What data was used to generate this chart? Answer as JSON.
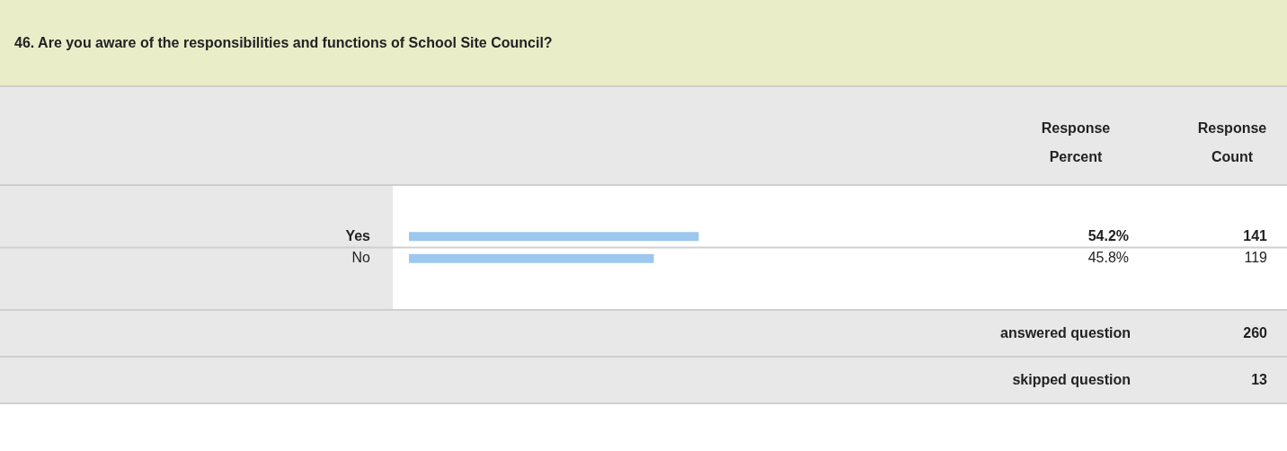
{
  "chart_data": {
    "type": "bar",
    "orientation": "horizontal",
    "title": "46. Are you aware of the responsibilities and functions of School Site Council?",
    "categories": [
      "Yes",
      "No"
    ],
    "series": [
      {
        "color": "#9cc8ef",
        "values": [
          54.2,
          45.8
        ],
        "value_labels": [
          "54.2%",
          "45.8%"
        ]
      }
    ],
    "grid": false,
    "legend": false,
    "annotations": [
      "Response Percent",
      "Response Count",
      "141",
      "119",
      "answered question",
      "260",
      "skipped question",
      "13"
    ]
  }
}
